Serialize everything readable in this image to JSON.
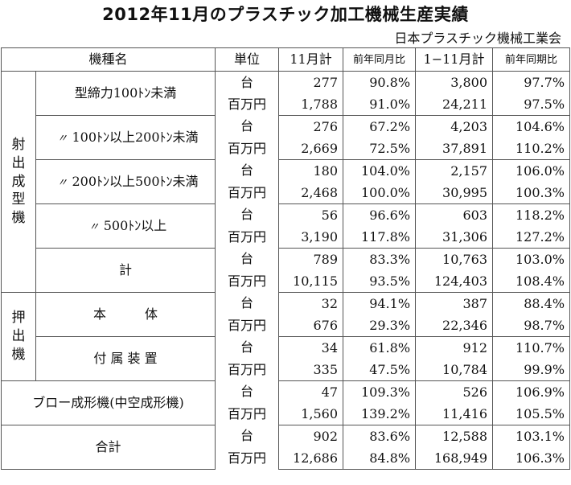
{
  "title": "2012年11月のプラスチック加工機械生産実績",
  "source": "日本プラスチック機械工業会",
  "headers": {
    "category": "機種名",
    "unit": "単位",
    "month": "11月計",
    "month_yoy": "前年同月比",
    "cumulative": "1−11月計",
    "cumulative_yoy": "前年同期比"
  },
  "groups": {
    "injection": "射出成型機",
    "extrusion": "押出機"
  },
  "units": {
    "count": "台",
    "value": "百万円"
  },
  "rows": [
    {
      "label": "型締力100ﾄﾝ未満",
      "mark": "",
      "count": [
        "277",
        "90.8%",
        "3,800",
        "97.7%"
      ],
      "value": [
        "1,788",
        "91.0%",
        "24,211",
        "97.5%"
      ]
    },
    {
      "label": "100ﾄﾝ以上200ﾄﾝ未満",
      "mark": "〃",
      "count": [
        "276",
        "67.2%",
        "4,203",
        "104.6%"
      ],
      "value": [
        "2,669",
        "72.5%",
        "37,891",
        "110.2%"
      ]
    },
    {
      "label": "200ﾄﾝ以上500ﾄﾝ未満",
      "mark": "〃",
      "count": [
        "180",
        "104.0%",
        "2,157",
        "106.0%"
      ],
      "value": [
        "2,468",
        "100.0%",
        "30,995",
        "100.3%"
      ]
    },
    {
      "label": "500ﾄﾝ以上",
      "mark": "〃",
      "count": [
        "56",
        "96.6%",
        "603",
        "118.2%"
      ],
      "value": [
        "3,190",
        "117.8%",
        "31,306",
        "127.2%"
      ]
    },
    {
      "label": "計",
      "mark": "",
      "count": [
        "789",
        "83.3%",
        "10,763",
        "103.0%"
      ],
      "value": [
        "10,115",
        "93.5%",
        "124,403",
        "108.4%"
      ]
    },
    {
      "label": "本　　　体",
      "mark": "",
      "count": [
        "32",
        "94.1%",
        "387",
        "88.4%"
      ],
      "value": [
        "676",
        "29.3%",
        "22,346",
        "98.7%"
      ]
    },
    {
      "label": "付 属 装 置",
      "mark": "",
      "count": [
        "34",
        "61.8%",
        "912",
        "110.7%"
      ],
      "value": [
        "335",
        "47.5%",
        "10,784",
        "99.9%"
      ]
    },
    {
      "label": "ブロー成形機(中空成形機)",
      "mark": "",
      "count": [
        "47",
        "109.3%",
        "526",
        "106.9%"
      ],
      "value": [
        "1,560",
        "139.2%",
        "11,416",
        "105.5%"
      ]
    },
    {
      "label": "合計",
      "mark": "",
      "count": [
        "902",
        "83.6%",
        "12,588",
        "103.1%"
      ],
      "value": [
        "12,686",
        "84.8%",
        "168,949",
        "106.3%"
      ]
    }
  ]
}
